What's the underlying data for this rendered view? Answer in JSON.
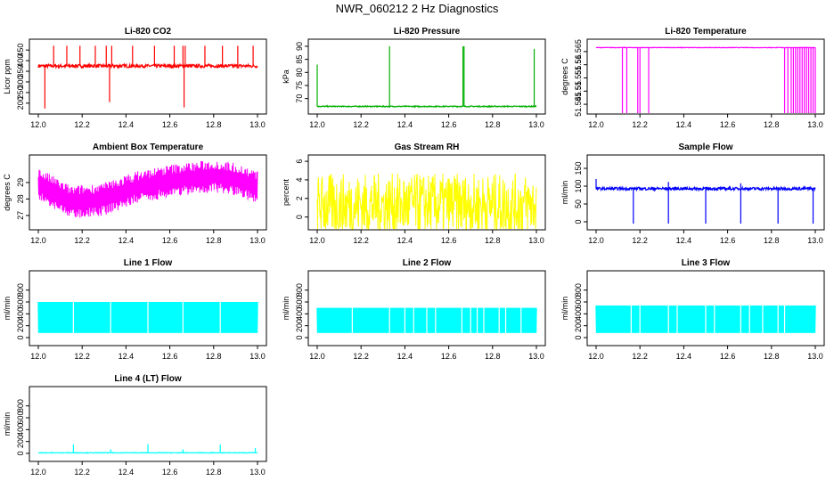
{
  "title": "NWR_060212  2 Hz Diagnostics",
  "chart_data": [
    {
      "type": "line",
      "title": "Li-820 CO2",
      "xlabel": "",
      "ylabel": "Licor ppm",
      "x_ticks": [
        12.0,
        12.2,
        12.4,
        12.6,
        12.8,
        13.0
      ],
      "xlim": [
        12.0,
        13.0
      ],
      "y_ticks": [
        200,
        250,
        300,
        350,
        400,
        450
      ],
      "ylim": [
        170,
        480
      ],
      "color": "#ff0000",
      "baseline": 375,
      "noise": 8,
      "spikes": [
        [
          12.03,
          175
        ],
        [
          12.07,
          470
        ],
        [
          12.13,
          470
        ],
        [
          12.19,
          470
        ],
        [
          12.26,
          470
        ],
        [
          12.31,
          470
        ],
        [
          12.325,
          205
        ],
        [
          12.335,
          470
        ],
        [
          12.43,
          470
        ],
        [
          12.53,
          470
        ],
        [
          12.62,
          470
        ],
        [
          12.66,
          470
        ],
        [
          12.665,
          180
        ],
        [
          12.67,
          470
        ],
        [
          12.76,
          470
        ],
        [
          12.84,
          470
        ],
        [
          12.91,
          470
        ],
        [
          12.98,
          470
        ]
      ]
    },
    {
      "type": "line",
      "title": "Li-820 Pressure",
      "xlabel": "",
      "ylabel": "kPa",
      "x_ticks": [
        12.0,
        12.2,
        12.4,
        12.6,
        12.8,
        13.0
      ],
      "xlim": [
        12.0,
        13.0
      ],
      "y_ticks": [
        70,
        75,
        80,
        85,
        90
      ],
      "ylim": [
        65.8,
        91
      ],
      "color": "#00b000",
      "baseline": 67,
      "noise": 0.2,
      "spikes": [
        [
          12.0,
          83
        ],
        [
          12.33,
          90
        ],
        [
          12.665,
          90
        ],
        [
          12.67,
          90
        ],
        [
          12.99,
          89
        ]
      ]
    },
    {
      "type": "line",
      "title": "Li-820 Temperature",
      "xlabel": "",
      "ylabel": "degrees C",
      "x_ticks": [
        12.0,
        12.2,
        12.4,
        12.6,
        12.8,
        13.0
      ],
      "xlim": [
        12.0,
        13.0
      ],
      "y_ticks": [
        51.545,
        51.55,
        51.555,
        51.56,
        51.565
      ],
      "ylim": [
        51.543,
        51.568
      ],
      "color": "#ff00ff",
      "baseline": 51.5665,
      "noise": 0.0001,
      "drops": [
        12.12,
        12.14,
        12.19,
        12.2,
        12.24,
        12.86,
        12.875,
        12.89,
        12.9,
        12.91,
        12.92,
        12.93,
        12.94,
        12.95,
        12.96,
        12.97,
        12.98,
        12.99,
        13.0
      ]
    },
    {
      "type": "line",
      "title": "Ambient Box Temperature",
      "xlabel": "",
      "ylabel": "degrees C",
      "x_ticks": [
        12.0,
        12.2,
        12.4,
        12.6,
        12.8,
        13.0
      ],
      "xlim": [
        12.0,
        13.0
      ],
      "y_ticks": [
        27,
        28,
        29
      ],
      "ylim": [
        26.4,
        30.4
      ],
      "color": "#ff00ff",
      "trend_x": [
        12.0,
        12.15,
        12.3,
        12.45,
        12.6,
        12.8,
        12.9,
        13.0
      ],
      "trend_y": [
        28.9,
        27.8,
        28.0,
        28.7,
        29.1,
        29.4,
        29.2,
        28.7
      ],
      "noise": 1.0
    },
    {
      "type": "line",
      "title": "Gas Stream RH",
      "xlabel": "",
      "ylabel": "percent",
      "x_ticks": [
        12.0,
        12.2,
        12.4,
        12.6,
        12.8,
        13.0
      ],
      "xlim": [
        12.0,
        13.0
      ],
      "y_ticks": [
        0,
        2,
        4,
        6
      ],
      "ylim": [
        -0.9,
        6.2
      ],
      "color": "#ffff00",
      "baseline": 1.3,
      "noise": 3.4
    },
    {
      "type": "line",
      "title": "Sample Flow",
      "xlabel": "",
      "ylabel": "ml/min",
      "x_ticks": [
        12.0,
        12.2,
        12.4,
        12.6,
        12.8,
        13.0
      ],
      "xlim": [
        12.0,
        13.0
      ],
      "y_ticks": [
        0,
        50,
        100,
        150
      ],
      "ylim": [
        -10,
        175
      ],
      "color": "#0000ff",
      "baseline": 93,
      "noise": 4,
      "spikes": [
        [
          12.0,
          120
        ],
        [
          12.17,
          -5
        ],
        [
          12.33,
          -5
        ],
        [
          12.33,
          112
        ],
        [
          12.5,
          -5
        ],
        [
          12.66,
          -5
        ],
        [
          12.66,
          108
        ],
        [
          12.83,
          -5
        ],
        [
          12.99,
          -5
        ]
      ]
    },
    {
      "type": "area",
      "title": "Line 1 Flow",
      "xlabel": "",
      "ylabel": "ml/min",
      "x_ticks": [
        12.0,
        12.2,
        12.4,
        12.6,
        12.8,
        13.0
      ],
      "xlim": [
        12.0,
        13.0
      ],
      "y_ticks": [
        0,
        200,
        400,
        600,
        800
      ],
      "ylim": [
        -60,
        1050
      ],
      "color": "#00ffff",
      "low": 80,
      "high": 600,
      "gaps": [
        12.16,
        12.33,
        12.5,
        12.66,
        12.83
      ]
    },
    {
      "type": "area",
      "title": "Line 2 Flow",
      "xlabel": "",
      "ylabel": "ml/min",
      "x_ticks": [
        12.0,
        12.2,
        12.4,
        12.6,
        12.8,
        13.0
      ],
      "xlim": [
        12.0,
        13.0
      ],
      "y_ticks": [
        0,
        200,
        400,
        600,
        800
      ],
      "ylim": [
        -60,
        1050
      ],
      "color": "#00ffff",
      "low": 80,
      "high": 500,
      "gaps": [
        12.16,
        12.33,
        12.4,
        12.44,
        12.5,
        12.54,
        12.66,
        12.7,
        12.73,
        12.76,
        12.83,
        12.86,
        12.93
      ]
    },
    {
      "type": "area",
      "title": "Line 3 Flow",
      "xlabel": "",
      "ylabel": "ml/min",
      "x_ticks": [
        12.0,
        12.2,
        12.4,
        12.6,
        12.8,
        13.0
      ],
      "xlim": [
        12.0,
        13.0
      ],
      "y_ticks": [
        0,
        200,
        400,
        600,
        800
      ],
      "ylim": [
        -60,
        1050
      ],
      "color": "#00ffff",
      "low": 80,
      "high": 540,
      "gaps": [
        12.16,
        12.2,
        12.33,
        12.37,
        12.5,
        12.54,
        12.66,
        12.7,
        12.76,
        12.83,
        12.86
      ]
    },
    {
      "type": "line",
      "title": "Line 4 (LT) Flow",
      "xlabel": "",
      "ylabel": "ml/min",
      "x_ticks": [
        12.0,
        12.2,
        12.4,
        12.6,
        12.8,
        13.0
      ],
      "xlim": [
        12.0,
        13.0
      ],
      "y_ticks": [
        0,
        200,
        400,
        600,
        800
      ],
      "ylim": [
        -60,
        1050
      ],
      "color": "#00ffff",
      "baseline": 10,
      "noise": 5,
      "spikes": [
        [
          12.16,
          150
        ],
        [
          12.33,
          70
        ],
        [
          12.5,
          155
        ],
        [
          12.66,
          70
        ],
        [
          12.83,
          150
        ],
        [
          12.99,
          90
        ]
      ]
    }
  ]
}
